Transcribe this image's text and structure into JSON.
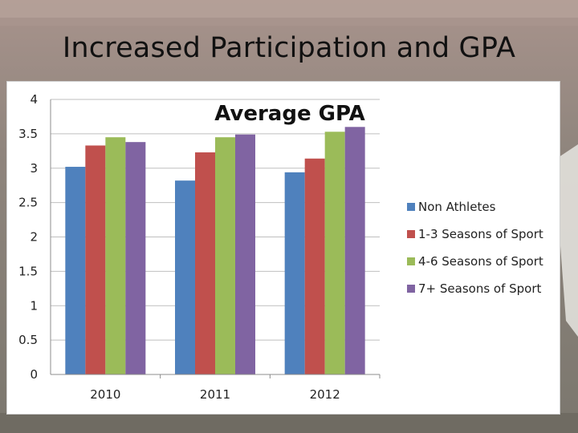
{
  "slide": {
    "title": "Increased Participation and GPA"
  },
  "chart_data": {
    "type": "bar",
    "title": "Average GPA",
    "categories": [
      "2010",
      "2011",
      "2012"
    ],
    "series": [
      {
        "name": "Non Athletes",
        "values": [
          3.02,
          2.82,
          2.94
        ],
        "color": "#4f81bd"
      },
      {
        "name": "1-3 Seasons of Sport",
        "values": [
          3.33,
          3.23,
          3.14
        ],
        "color": "#c0504d"
      },
      {
        "name": "4-6 Seasons of Sport",
        "values": [
          3.45,
          3.45,
          3.53
        ],
        "color": "#9bbb59"
      },
      {
        "name": "7+ Seasons of Sport",
        "values": [
          3.38,
          3.49,
          3.6
        ],
        "color": "#8064a2"
      }
    ],
    "ylim": [
      0,
      4
    ],
    "yticks": [
      "0",
      "0.5",
      "1",
      "1.5",
      "2",
      "2.5",
      "3",
      "3.5",
      "4"
    ],
    "grid": true,
    "legend_position": "right"
  }
}
